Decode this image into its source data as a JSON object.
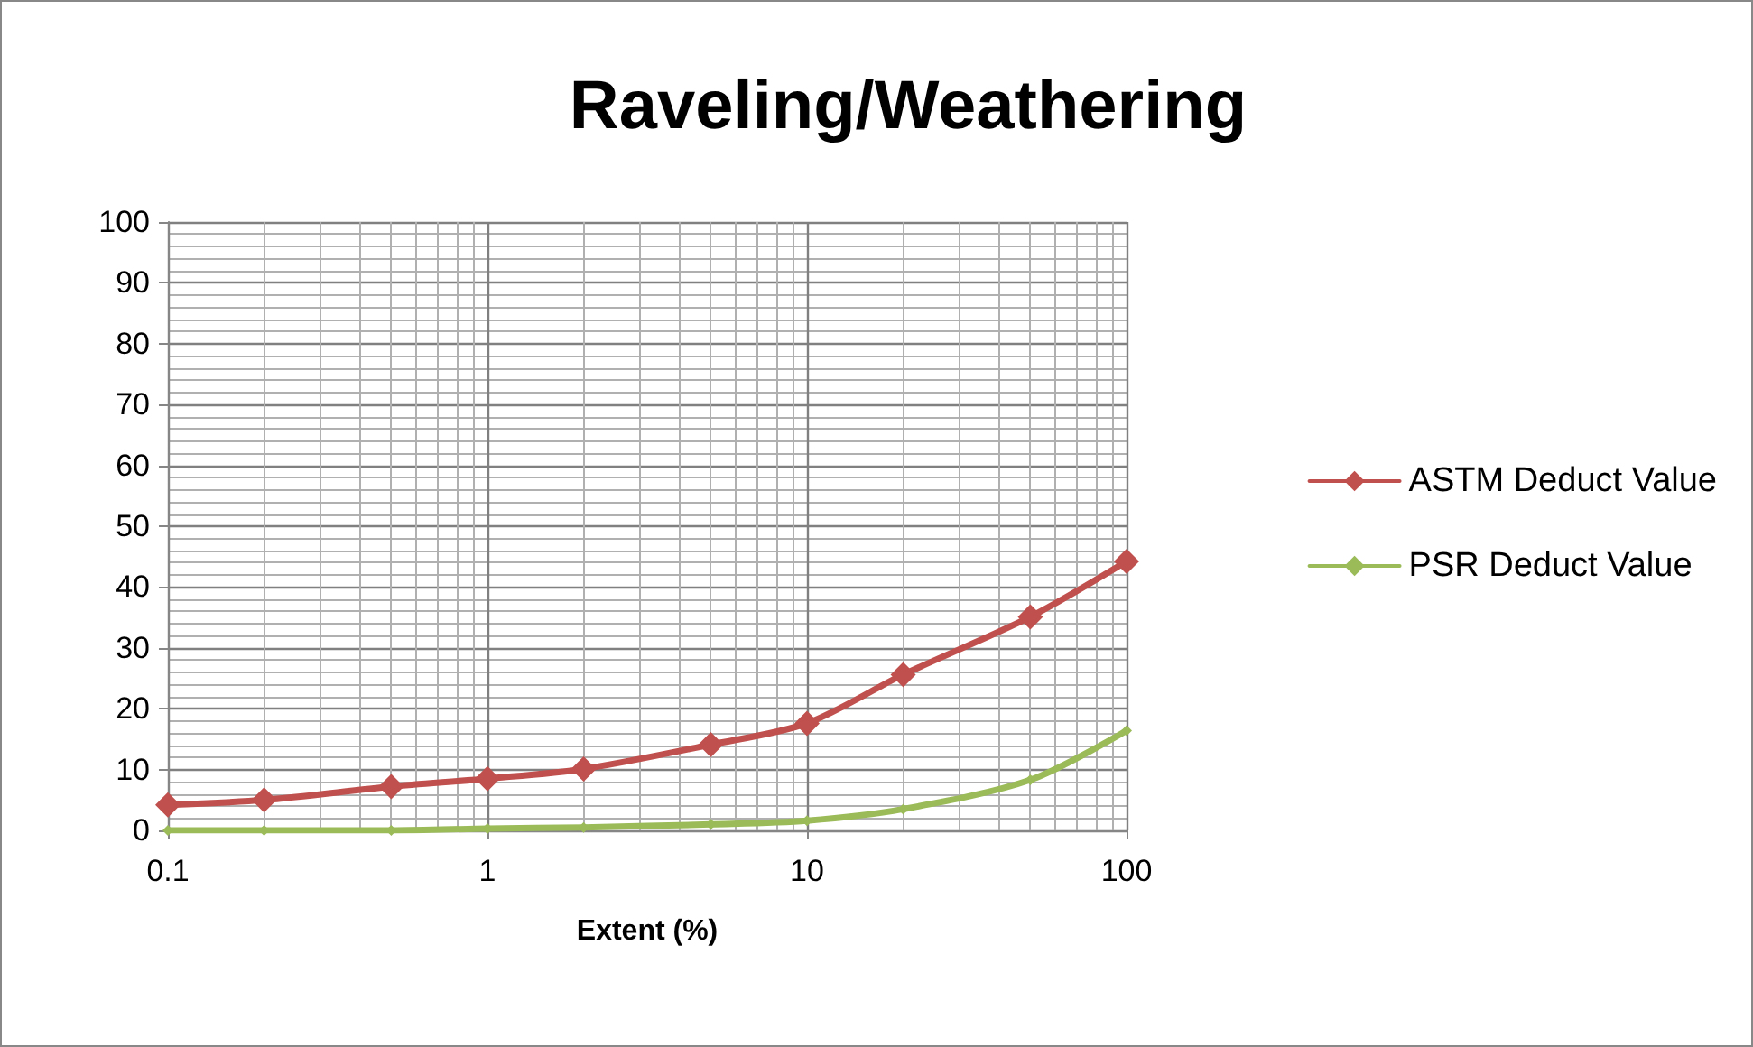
{
  "chart_data": {
    "type": "line",
    "title": "Raveling/Weathering",
    "xlabel": "Extent (%)",
    "x": [
      0.1,
      0.2,
      0.5,
      1,
      2,
      5,
      10,
      20,
      50,
      100
    ],
    "series": [
      {
        "name": "ASTM Deduct Value",
        "color": "#c0504d",
        "marker": "diamond",
        "values": [
          4.2,
          5.0,
          7.2,
          8.5,
          10.1,
          14.1,
          17.6,
          25.6,
          35.1,
          44.2
        ]
      },
      {
        "name": "PSR Deduct Value",
        "color": "#9bbb59",
        "marker": "diamond",
        "values": [
          0,
          0,
          0,
          0.3,
          0.5,
          1.0,
          1.6,
          3.5,
          8.3,
          16.4
        ]
      }
    ],
    "log": "x",
    "xlim": [
      0.1,
      100
    ],
    "xticks": [
      0.1,
      1,
      10,
      100
    ],
    "ylim": [
      0,
      100
    ],
    "yticks": [
      0,
      10,
      20,
      30,
      40,
      50,
      60,
      70,
      80,
      90,
      100
    ],
    "grid": true,
    "legend": "right",
    "line_style": "solid"
  }
}
